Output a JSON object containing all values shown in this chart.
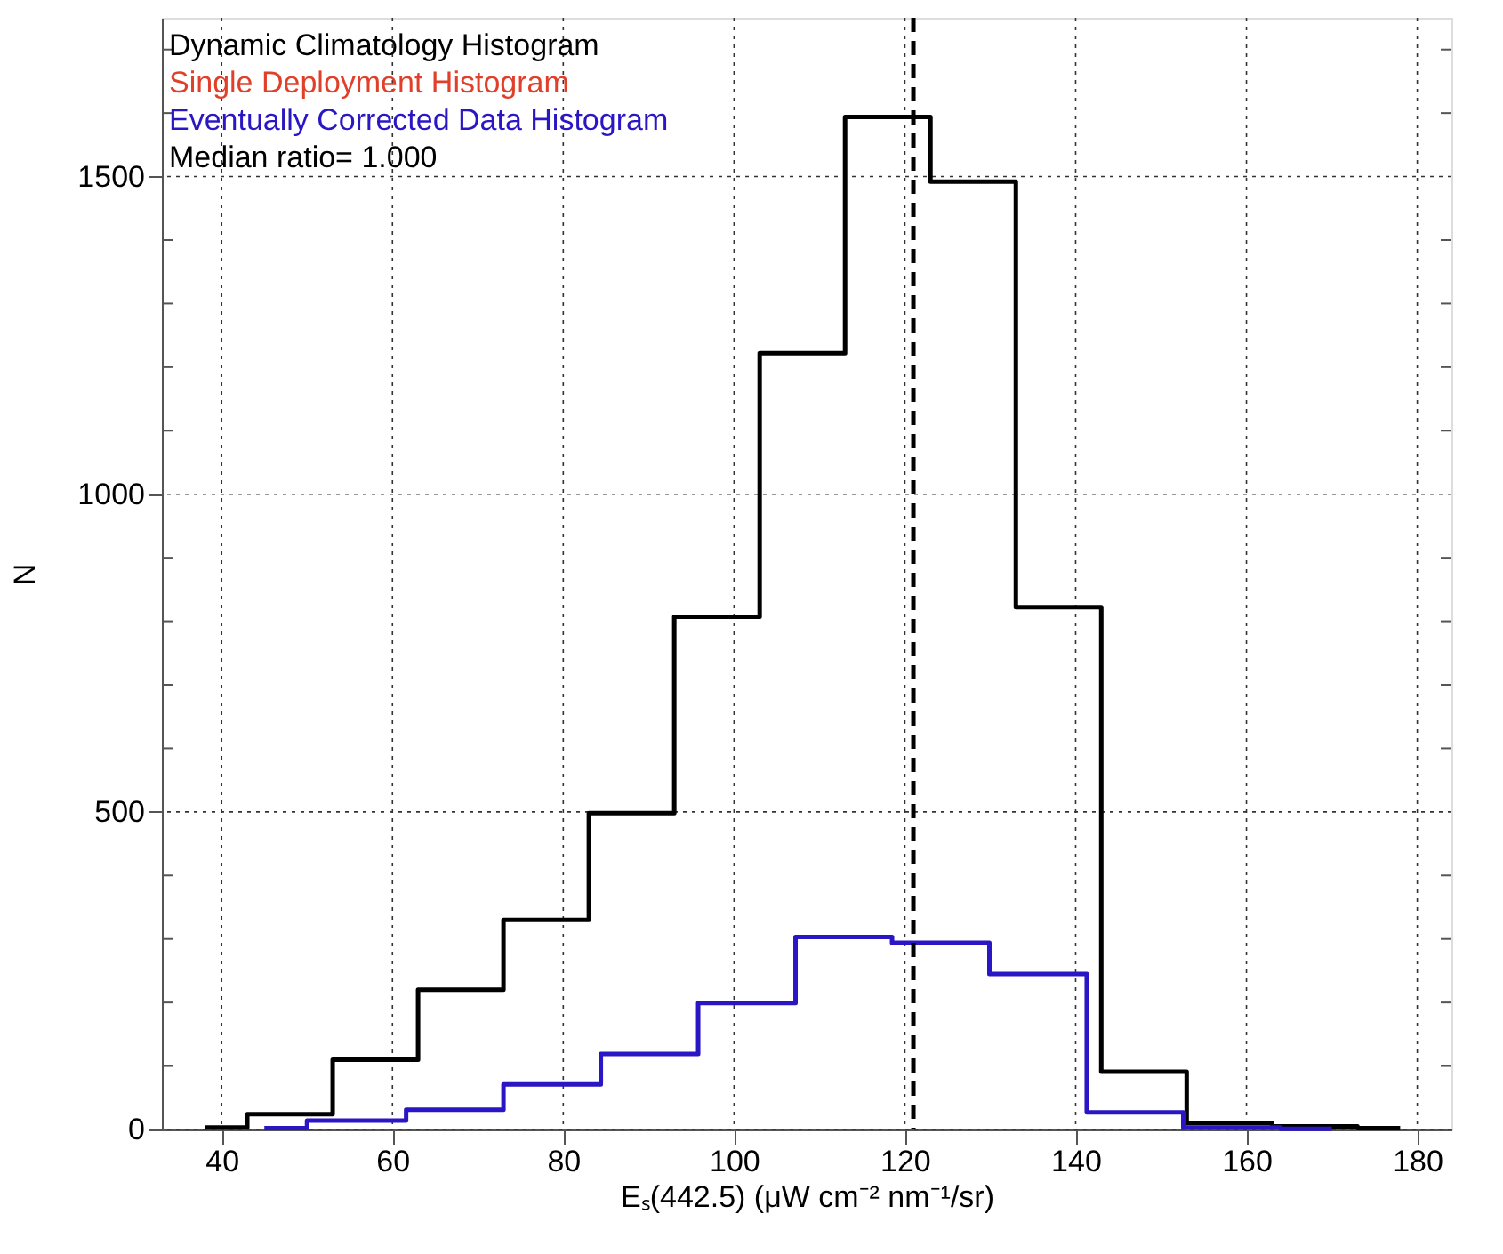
{
  "chart_data": {
    "type": "step",
    "xlabel": "Eₛ(442.5) (μW cm⁻² nm⁻¹/sr)",
    "ylabel": "N",
    "series": [
      {
        "name": "Dynamic Climatology Histogram",
        "color": "#000000",
        "x": [
          38,
          43,
          53,
          63,
          73,
          83,
          93,
          103,
          113,
          123,
          133,
          143,
          153,
          163,
          173,
          178
        ],
        "values": [
          3,
          24,
          110,
          220,
          330,
          498,
          807,
          1222,
          1594,
          1492,
          822,
          91,
          10,
          5,
          2,
          2
        ]
      },
      {
        "name": "Single Deployment Histogram",
        "color": "#e0402a"
      },
      {
        "name": "Eventually Corrected Data Histogram",
        "color": "#2a16c4",
        "x": [
          45,
          50,
          61.6,
          73,
          84.4,
          95.8,
          107.2,
          118.5,
          129.9,
          141.3,
          152.6,
          164,
          170
        ],
        "values": [
          2,
          14,
          31,
          71,
          119,
          199,
          303,
          294,
          245,
          27,
          3,
          1,
          1
        ]
      }
    ],
    "annotations": [
      "Median ratio= 1.000"
    ],
    "ref_lines": [
      {
        "axis": "x",
        "value": 121,
        "label": null,
        "color": "#000000",
        "line_style": "dashed"
      }
    ],
    "xlim": [
      33,
      184
    ],
    "ylim": [
      0,
      1750
    ],
    "xticks": [
      40,
      60,
      80,
      100,
      120,
      140,
      160,
      180
    ],
    "yticks": [
      0,
      {
        "value": 100,
        "label": null
      },
      {
        "value": 200,
        "label": null
      },
      {
        "value": 300,
        "label": null
      },
      {
        "value": 400,
        "label": null
      },
      500,
      {
        "value": 600,
        "label": null
      },
      {
        "value": 700,
        "label": null
      },
      {
        "value": 800,
        "label": null
      },
      {
        "value": 900,
        "label": null
      },
      1000,
      {
        "value": 1100,
        "label": null
      },
      {
        "value": 1200,
        "label": null
      },
      {
        "value": 1300,
        "label": null
      },
      {
        "value": 1400,
        "label": null
      },
      1500,
      {
        "value": 1600,
        "label": null
      },
      {
        "value": 1700,
        "label": null
      }
    ],
    "grid": true
  }
}
